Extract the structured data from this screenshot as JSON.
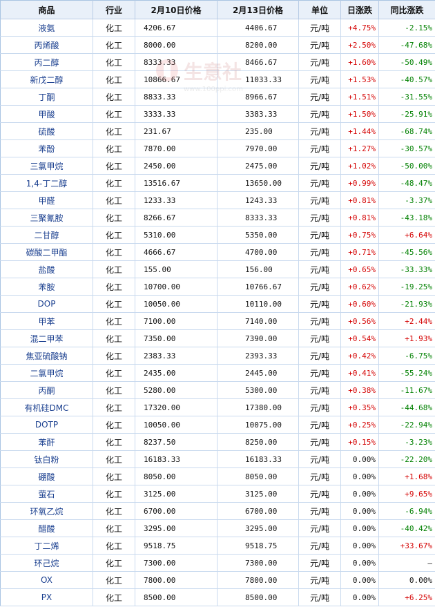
{
  "headers": {
    "product": "商品",
    "industry": "行业",
    "price_feb10": "2月10日价格",
    "price_feb13": "2月13日价格",
    "unit": "单位",
    "daily_change": "日涨跌",
    "yoy_change": "同比涨跌"
  },
  "watermark": {
    "text": "生意社",
    "url": "www.100ppi.com"
  },
  "colors": {
    "up": "#d40000",
    "down": "#008000",
    "header_bg": "#e9f0f9",
    "border": "#c8d9ee",
    "product_text": "#1a3f8f"
  },
  "rows": [
    {
      "product": "液氨",
      "industry": "化工",
      "p10": "4206.67",
      "p13": "4406.67",
      "unit": "元/吨",
      "daily": "+4.75%",
      "yoy": "-2.15%"
    },
    {
      "product": "丙烯酸",
      "industry": "化工",
      "p10": "8000.00",
      "p13": "8200.00",
      "unit": "元/吨",
      "daily": "+2.50%",
      "yoy": "-47.68%"
    },
    {
      "product": "丙二醇",
      "industry": "化工",
      "p10": "8333.33",
      "p13": "8466.67",
      "unit": "元/吨",
      "daily": "+1.60%",
      "yoy": "-50.49%"
    },
    {
      "product": "新戊二醇",
      "industry": "化工",
      "p10": "10866.67",
      "p13": "11033.33",
      "unit": "元/吨",
      "daily": "+1.53%",
      "yoy": "-40.57%"
    },
    {
      "product": "丁酮",
      "industry": "化工",
      "p10": "8833.33",
      "p13": "8966.67",
      "unit": "元/吨",
      "daily": "+1.51%",
      "yoy": "-31.55%"
    },
    {
      "product": "甲酸",
      "industry": "化工",
      "p10": "3333.33",
      "p13": "3383.33",
      "unit": "元/吨",
      "daily": "+1.50%",
      "yoy": "-25.91%"
    },
    {
      "product": "硫酸",
      "industry": "化工",
      "p10": "231.67",
      "p13": "235.00",
      "unit": "元/吨",
      "daily": "+1.44%",
      "yoy": "-68.74%"
    },
    {
      "product": "苯酚",
      "industry": "化工",
      "p10": "7870.00",
      "p13": "7970.00",
      "unit": "元/吨",
      "daily": "+1.27%",
      "yoy": "-30.57%"
    },
    {
      "product": "三氯甲烷",
      "industry": "化工",
      "p10": "2450.00",
      "p13": "2475.00",
      "unit": "元/吨",
      "daily": "+1.02%",
      "yoy": "-50.00%"
    },
    {
      "product": "1,4-丁二醇",
      "industry": "化工",
      "p10": "13516.67",
      "p13": "13650.00",
      "unit": "元/吨",
      "daily": "+0.99%",
      "yoy": "-48.47%"
    },
    {
      "product": "甲醛",
      "industry": "化工",
      "p10": "1233.33",
      "p13": "1243.33",
      "unit": "元/吨",
      "daily": "+0.81%",
      "yoy": "-3.37%"
    },
    {
      "product": "三聚氰胺",
      "industry": "化工",
      "p10": "8266.67",
      "p13": "8333.33",
      "unit": "元/吨",
      "daily": "+0.81%",
      "yoy": "-43.18%"
    },
    {
      "product": "二甘醇",
      "industry": "化工",
      "p10": "5310.00",
      "p13": "5350.00",
      "unit": "元/吨",
      "daily": "+0.75%",
      "yoy": "+6.64%"
    },
    {
      "product": "碳酸二甲酯",
      "industry": "化工",
      "p10": "4666.67",
      "p13": "4700.00",
      "unit": "元/吨",
      "daily": "+0.71%",
      "yoy": "-45.56%"
    },
    {
      "product": "盐酸",
      "industry": "化工",
      "p10": "155.00",
      "p13": "156.00",
      "unit": "元/吨",
      "daily": "+0.65%",
      "yoy": "-33.33%"
    },
    {
      "product": "苯胺",
      "industry": "化工",
      "p10": "10700.00",
      "p13": "10766.67",
      "unit": "元/吨",
      "daily": "+0.62%",
      "yoy": "-19.25%"
    },
    {
      "product": "DOP",
      "industry": "化工",
      "p10": "10050.00",
      "p13": "10110.00",
      "unit": "元/吨",
      "daily": "+0.60%",
      "yoy": "-21.93%"
    },
    {
      "product": "甲苯",
      "industry": "化工",
      "p10": "7100.00",
      "p13": "7140.00",
      "unit": "元/吨",
      "daily": "+0.56%",
      "yoy": "+2.44%"
    },
    {
      "product": "混二甲苯",
      "industry": "化工",
      "p10": "7350.00",
      "p13": "7390.00",
      "unit": "元/吨",
      "daily": "+0.54%",
      "yoy": "+1.93%"
    },
    {
      "product": "焦亚硫酸钠",
      "industry": "化工",
      "p10": "2383.33",
      "p13": "2393.33",
      "unit": "元/吨",
      "daily": "+0.42%",
      "yoy": "-6.75%"
    },
    {
      "product": "二氯甲烷",
      "industry": "化工",
      "p10": "2435.00",
      "p13": "2445.00",
      "unit": "元/吨",
      "daily": "+0.41%",
      "yoy": "-55.24%"
    },
    {
      "product": "丙酮",
      "industry": "化工",
      "p10": "5280.00",
      "p13": "5300.00",
      "unit": "元/吨",
      "daily": "+0.38%",
      "yoy": "-11.67%"
    },
    {
      "product": "有机硅DMC",
      "industry": "化工",
      "p10": "17320.00",
      "p13": "17380.00",
      "unit": "元/吨",
      "daily": "+0.35%",
      "yoy": "-44.68%"
    },
    {
      "product": "DOTP",
      "industry": "化工",
      "p10": "10050.00",
      "p13": "10075.00",
      "unit": "元/吨",
      "daily": "+0.25%",
      "yoy": "-22.94%"
    },
    {
      "product": "苯酐",
      "industry": "化工",
      "p10": "8237.50",
      "p13": "8250.00",
      "unit": "元/吨",
      "daily": "+0.15%",
      "yoy": "-3.23%"
    },
    {
      "product": "钛白粉",
      "industry": "化工",
      "p10": "16183.33",
      "p13": "16183.33",
      "unit": "元/吨",
      "daily": "0.00%",
      "yoy": "-22.20%"
    },
    {
      "product": "硼酸",
      "industry": "化工",
      "p10": "8050.00",
      "p13": "8050.00",
      "unit": "元/吨",
      "daily": "0.00%",
      "yoy": "+1.68%"
    },
    {
      "product": "萤石",
      "industry": "化工",
      "p10": "3125.00",
      "p13": "3125.00",
      "unit": "元/吨",
      "daily": "0.00%",
      "yoy": "+9.65%"
    },
    {
      "product": "环氧乙烷",
      "industry": "化工",
      "p10": "6700.00",
      "p13": "6700.00",
      "unit": "元/吨",
      "daily": "0.00%",
      "yoy": "-6.94%"
    },
    {
      "product": "醋酸",
      "industry": "化工",
      "p10": "3295.00",
      "p13": "3295.00",
      "unit": "元/吨",
      "daily": "0.00%",
      "yoy": "-40.42%"
    },
    {
      "product": "丁二烯",
      "industry": "化工",
      "p10": "9518.75",
      "p13": "9518.75",
      "unit": "元/吨",
      "daily": "0.00%",
      "yoy": "+33.67%"
    },
    {
      "product": "环己烷",
      "industry": "化工",
      "p10": "7300.00",
      "p13": "7300.00",
      "unit": "元/吨",
      "daily": "0.00%",
      "yoy": "—"
    },
    {
      "product": "OX",
      "industry": "化工",
      "p10": "7800.00",
      "p13": "7800.00",
      "unit": "元/吨",
      "daily": "0.00%",
      "yoy": "0.00%"
    },
    {
      "product": "PX",
      "industry": "化工",
      "p10": "8500.00",
      "p13": "8500.00",
      "unit": "元/吨",
      "daily": "0.00%",
      "yoy": "+6.25%"
    }
  ]
}
